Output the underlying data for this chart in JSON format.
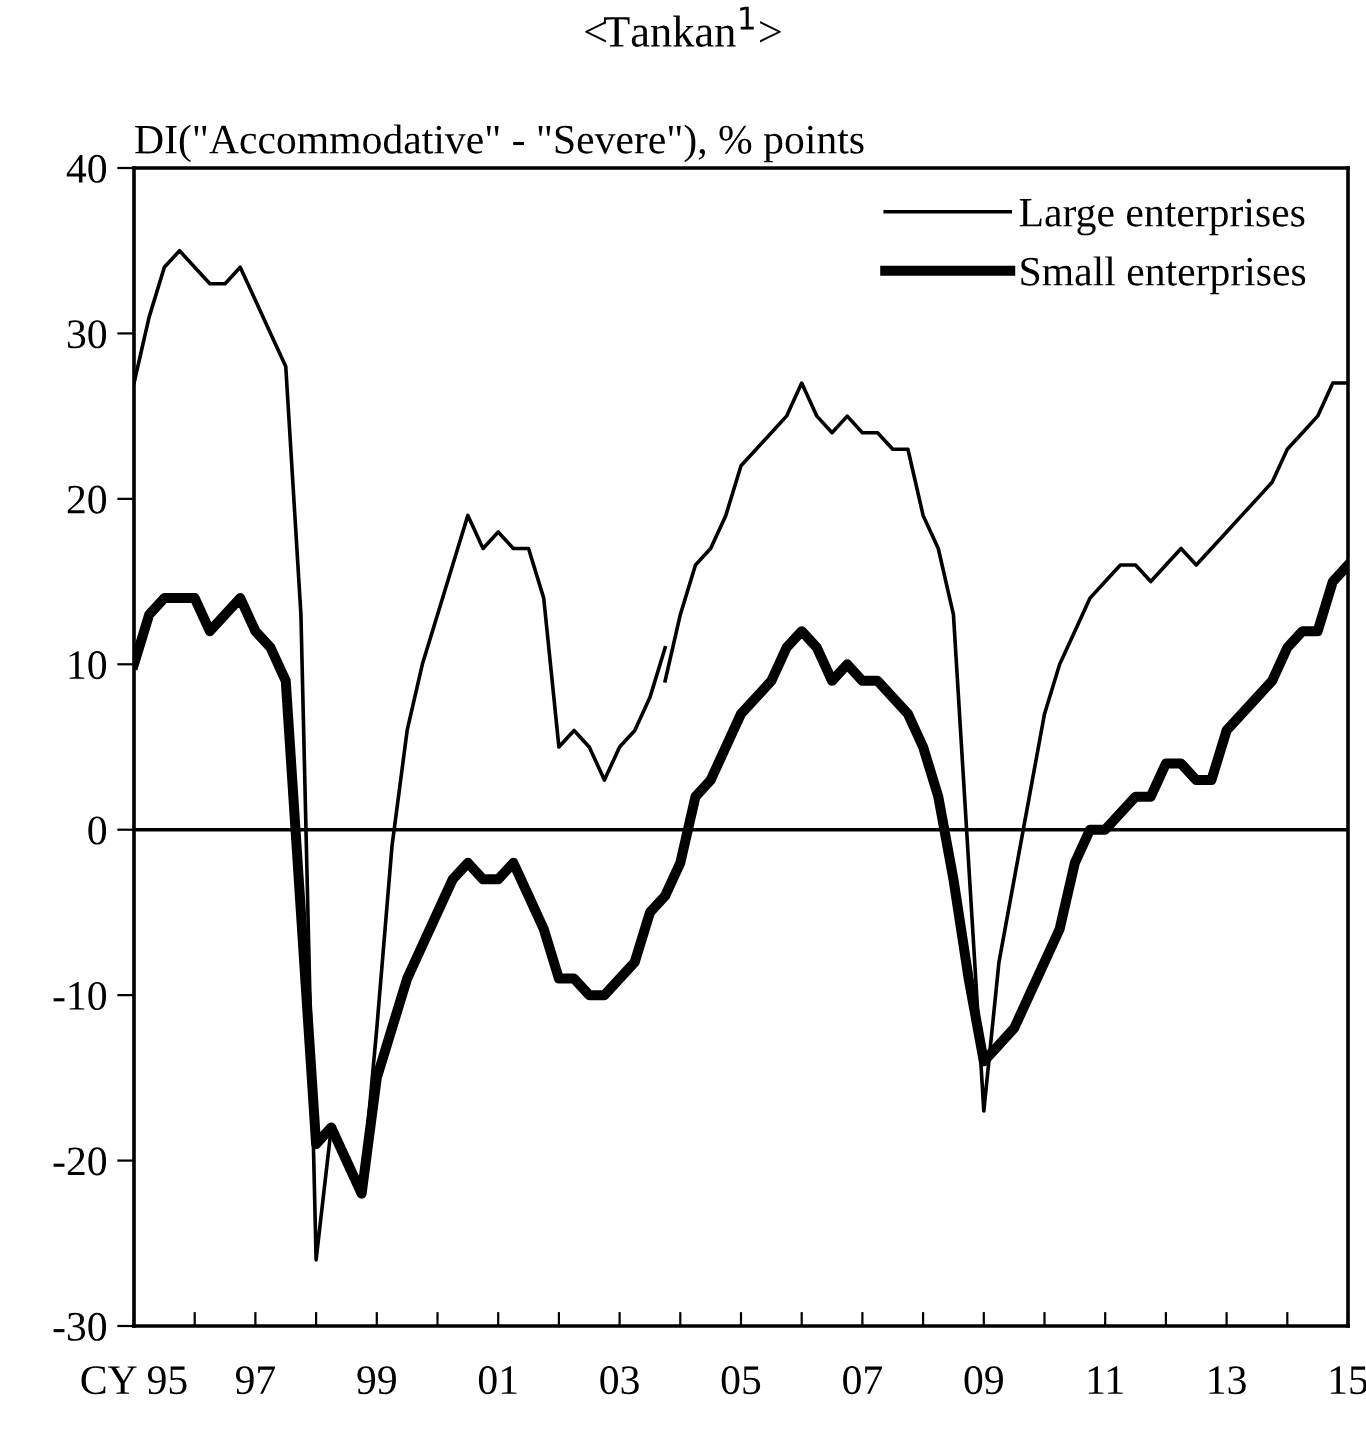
{
  "chart_data": {
    "type": "line",
    "title": "<Tankan$^{1}$>",
    "ylabel": "DI(\"Accommodative\" - \"Severe\"), % points",
    "xlim": [
      1995,
      2015
    ],
    "ylim": [
      -30,
      40
    ],
    "xticks": [
      {
        "value": 1995,
        "label": "CY 95"
      },
      {
        "value": 1996,
        "label": null
      },
      {
        "value": 1997,
        "label": "97"
      },
      {
        "value": 1998,
        "label": null
      },
      {
        "value": 1999,
        "label": "99"
      },
      {
        "value": 2000,
        "label": null
      },
      {
        "value": 2001,
        "label": "01"
      },
      {
        "value": 2002,
        "label": null
      },
      {
        "value": 2003,
        "label": "03"
      },
      {
        "value": 2004,
        "label": null
      },
      {
        "value": 2005,
        "label": "05"
      },
      {
        "value": 2006,
        "label": null
      },
      {
        "value": 2007,
        "label": "07"
      },
      {
        "value": 2008,
        "label": null
      },
      {
        "value": 2009,
        "label": "09"
      },
      {
        "value": 2010,
        "label": null
      },
      {
        "value": 2011,
        "label": "11"
      },
      {
        "value": 2012,
        "label": null
      },
      {
        "value": 2013,
        "label": "13"
      },
      {
        "value": 2014,
        "label": null
      },
      {
        "value": 2015,
        "label": "15"
      }
    ],
    "yticks": [
      -30,
      -20,
      -10,
      0,
      10,
      20,
      30,
      40
    ],
    "grid": false,
    "legend": "top right",
    "marker": "none",
    "line_style": "solid",
    "ref_lines": [
      {
        "axis": "y",
        "value": 0,
        "color": "#000000"
      }
    ],
    "series": [
      {
        "name": "Large enterprises",
        "color": "#000000",
        "x": [
          1995,
          1995.25,
          1995.5,
          1995.75,
          1996,
          1996.25,
          1996.5,
          1996.75,
          1997,
          1997.25,
          1997.5,
          1997.75,
          1998,
          1998.25,
          1998.5,
          1998.75,
          1999,
          1999.25,
          1999.5,
          1999.75,
          2000,
          2000.25,
          2000.5,
          2000.75,
          2001,
          2001.25,
          2001.5,
          2001.75,
          2002,
          2002.25,
          2002.5,
          2002.75,
          2003,
          2003.25,
          2003.5,
          2003.75
        ],
        "values": [
          27,
          31,
          34,
          35,
          34,
          33,
          33,
          34,
          32,
          30,
          28,
          13,
          -26,
          -18,
          -20,
          -22,
          -12,
          -1,
          6,
          10,
          13,
          16,
          19,
          17,
          18,
          17,
          17,
          14,
          5,
          6,
          5,
          3,
          5,
          6,
          8,
          11
        ]
      },
      {
        "color": "#000000",
        "x": [
          2003.75,
          2004,
          2004.25,
          2004.5,
          2004.75,
          2005,
          2005.25,
          2005.5,
          2005.75,
          2006,
          2006.25,
          2006.5,
          2006.75,
          2007,
          2007.25,
          2007.5,
          2007.75,
          2008,
          2008.25,
          2008.5,
          2008.75,
          2009,
          2009.25,
          2009.5,
          2009.75,
          2010,
          2010.25,
          2010.5,
          2010.75,
          2011,
          2011.25,
          2011.5,
          2011.75,
          2012,
          2012.25,
          2012.5,
          2012.75,
          2013,
          2013.25,
          2013.5,
          2013.75,
          2014,
          2014.25,
          2014.5,
          2014.75,
          2015
        ],
        "values": [
          9,
          13,
          16,
          17,
          19,
          22,
          23,
          24,
          25,
          27,
          25,
          24,
          25,
          24,
          24,
          23,
          23,
          19,
          17,
          13,
          -2,
          -17,
          -8,
          -3,
          2,
          7,
          10,
          12,
          14,
          15,
          16,
          16,
          15,
          16,
          17,
          16,
          17,
          18,
          19,
          20,
          21,
          23,
          24,
          25,
          27,
          27
        ]
      },
      {
        "name": "Small enterprises",
        "color": "#000000",
        "x": [
          1995,
          1995.25,
          1995.5,
          1995.75,
          1996,
          1996.25,
          1996.5,
          1996.75,
          1997,
          1997.25,
          1997.5,
          1997.75,
          1998,
          1998.25,
          1998.5,
          1998.75,
          1999,
          1999.25,
          1999.5,
          1999.75,
          2000,
          2000.25,
          2000.5,
          2000.75,
          2001,
          2001.25,
          2001.5,
          2001.75,
          2002,
          2002.25,
          2002.5,
          2002.75,
          2003,
          2003.25,
          2003.5,
          2003.75,
          2004,
          2004.25,
          2004.5,
          2004.75,
          2005,
          2005.25,
          2005.5,
          2005.75,
          2006,
          2006.25,
          2006.5,
          2006.75,
          2007,
          2007.25,
          2007.5,
          2007.75,
          2008,
          2008.25,
          2008.5,
          2008.75,
          2009,
          2009.25,
          2009.5,
          2009.75,
          2010,
          2010.25,
          2010.5,
          2010.75,
          2011,
          2011.25,
          2011.5,
          2011.75,
          2012,
          2012.25,
          2012.5,
          2012.75,
          2013,
          2013.25,
          2013.5,
          2013.75,
          2014,
          2014.25,
          2014.5,
          2014.75,
          2015
        ],
        "values": [
          10,
          13,
          14,
          14,
          14,
          12,
          13,
          14,
          12,
          11,
          9,
          -5,
          -19,
          -18,
          -20,
          -22,
          -15,
          -12,
          -9,
          -7,
          -5,
          -3,
          -2,
          -3,
          -3,
          -2,
          -4,
          -6,
          -9,
          -9,
          -10,
          -10,
          -9,
          -8,
          -5,
          -4,
          -2,
          2,
          3,
          5,
          7,
          8,
          9,
          11,
          12,
          11,
          9,
          10,
          9,
          9,
          8,
          7,
          5,
          2,
          -3,
          -9,
          -14,
          -13,
          -12,
          -10,
          -8,
          -6,
          -2,
          0,
          0,
          1,
          2,
          2,
          4,
          4,
          3,
          3,
          6,
          7,
          8,
          9,
          11,
          12,
          12,
          15,
          16
        ]
      }
    ]
  }
}
